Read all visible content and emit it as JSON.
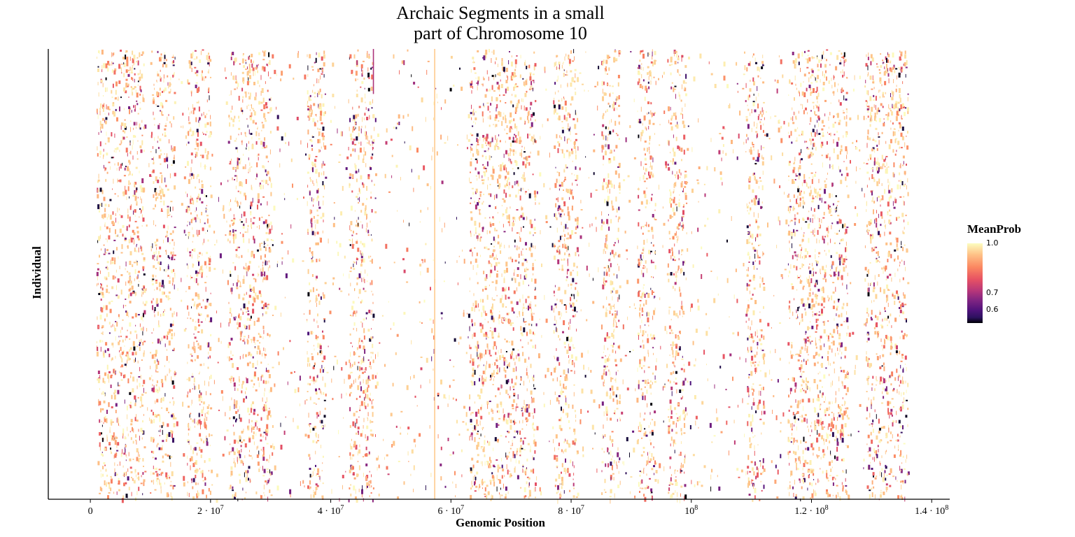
{
  "chart_data": {
    "type": "heatmap",
    "title_line1": "Archaic Segments in a small",
    "title_line2": "part of Chromosome 10",
    "xlabel": "Genomic Position",
    "ylabel": "Individual",
    "xlim": [
      -7000000,
      143000000
    ],
    "x_ticks": [
      {
        "value": 0,
        "base": "0",
        "exp": ""
      },
      {
        "value": 20000000,
        "base": "2 · 10",
        "exp": "7"
      },
      {
        "value": 40000000,
        "base": "4 · 10",
        "exp": "7"
      },
      {
        "value": 60000000,
        "base": "6 · 10",
        "exp": "7"
      },
      {
        "value": 80000000,
        "base": "8 · 10",
        "exp": "7"
      },
      {
        "value": 100000000,
        "base": "10",
        "exp": "8"
      },
      {
        "value": 120000000,
        "base": "1.2 · 10",
        "exp": "8"
      },
      {
        "value": 140000000,
        "base": "1.4 · 10",
        "exp": "8"
      }
    ],
    "legend": {
      "title": "MeanProb",
      "range": [
        0.52,
        1.0
      ],
      "ticks": [
        {
          "value": 1.0,
          "label": "1.0"
        },
        {
          "value": 0.7,
          "label": "0.7"
        },
        {
          "value": 0.6,
          "label": "0.6"
        }
      ],
      "colormap": "magma",
      "position": "right"
    },
    "data_extent_x": [
      1000000,
      136000000
    ],
    "dense_regions_x": [
      [
        1000000,
        9000000
      ],
      [
        10000000,
        14000000
      ],
      [
        16000000,
        20000000
      ],
      [
        23000000,
        30000000
      ],
      [
        36000000,
        39000000
      ],
      [
        43000000,
        47000000
      ],
      [
        63000000,
        74000000
      ],
      [
        77000000,
        81000000
      ],
      [
        85000000,
        88000000
      ],
      [
        91000000,
        94000000
      ],
      [
        96000000,
        99000000
      ],
      [
        109000000,
        112000000
      ],
      [
        116000000,
        126000000
      ],
      [
        129000000,
        136000000
      ]
    ],
    "sparse_regions_x": [
      [
        9000000,
        10000000
      ],
      [
        14000000,
        16000000
      ],
      [
        20000000,
        23000000
      ],
      [
        30000000,
        36000000
      ],
      [
        39000000,
        43000000
      ],
      [
        47000000,
        63000000
      ],
      [
        74000000,
        77000000
      ],
      [
        81000000,
        85000000
      ],
      [
        88000000,
        91000000
      ],
      [
        94000000,
        96000000
      ],
      [
        99000000,
        109000000
      ],
      [
        112000000,
        116000000
      ],
      [
        126000000,
        129000000
      ]
    ],
    "vertical_lines": [
      {
        "x": 47100000,
        "y_fraction": [
          0.0,
          0.1
        ],
        "prob": 0.75
      },
      {
        "x": 57300000,
        "y_fraction": [
          0.0,
          1.0
        ],
        "prob": 0.95
      }
    ],
    "grid": false
  }
}
